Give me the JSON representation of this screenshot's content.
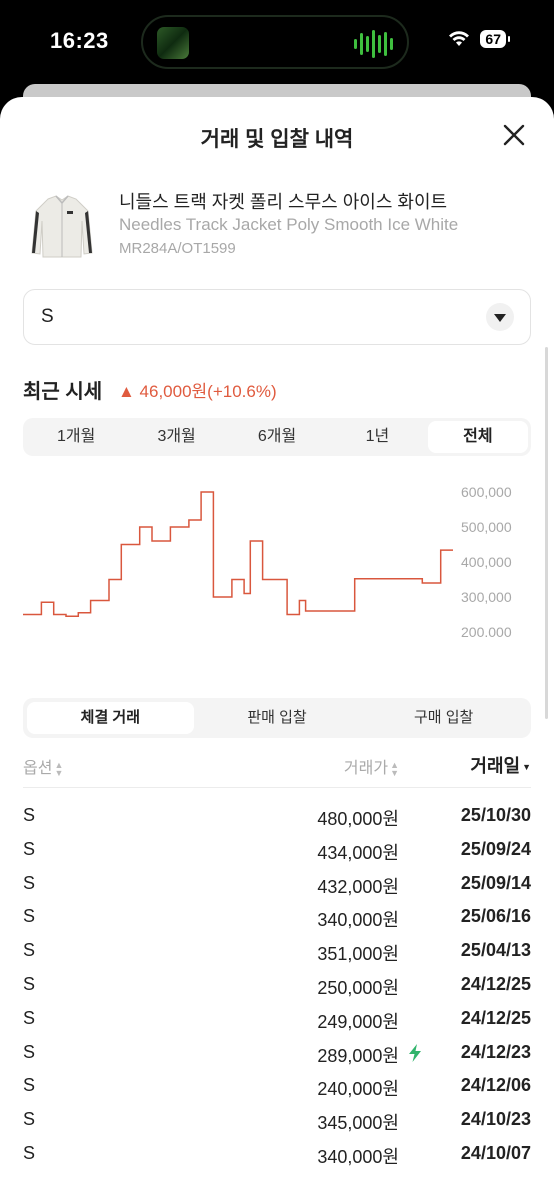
{
  "status_bar": {
    "time": "16:23",
    "battery": "67"
  },
  "sheet": {
    "title": "거래 및 입찰 내역"
  },
  "product": {
    "name_ko": "니들스 트랙 자켓 폴리 스무스 아이스 화이트",
    "name_en": "Needles Track Jacket Poly Smooth Ice White",
    "code": "MR284A/OT1599"
  },
  "size_select": {
    "value": "S"
  },
  "recent": {
    "title": "최근 시세",
    "change": "▲ 46,000원(+10.6%)"
  },
  "periods": [
    "1개월",
    "3개월",
    "6개월",
    "1년",
    "전체"
  ],
  "active_period": "전체",
  "chart_data": {
    "type": "line",
    "y_ticks": [
      "600,000",
      "500,000",
      "400,000",
      "300,000",
      "200,000"
    ],
    "ylim": [
      200000,
      600000
    ],
    "color": "#d9573d",
    "values": [
      250000,
      250000,
      250000,
      285000,
      285000,
      250000,
      250000,
      245000,
      245000,
      255000,
      255000,
      290000,
      290000,
      290000,
      350000,
      350000,
      450000,
      450000,
      450000,
      500000,
      500000,
      460000,
      460000,
      460000,
      500000,
      500000,
      500000,
      520000,
      520000,
      600000,
      600000,
      300000,
      300000,
      300000,
      350000,
      350000,
      310000,
      460000,
      460000,
      350000,
      350000,
      350000,
      350000,
      250000,
      250000,
      290000,
      260000,
      260000,
      260000,
      260000,
      260000,
      260000,
      260000,
      260000,
      352000,
      352000,
      352000,
      352000,
      352000,
      352000,
      352000,
      352000,
      352000,
      352000,
      352000,
      340000,
      340000,
      340000,
      434000,
      434000,
      434000
    ]
  },
  "tabs": [
    "체결 거래",
    "판매 입찰",
    "구매 입찰"
  ],
  "active_tab": "체결 거래",
  "table": {
    "headers": {
      "option": "옵션",
      "price": "거래가",
      "date": "거래일"
    },
    "rows": [
      {
        "option": "S",
        "price": "480,000원",
        "date": "25/10/30",
        "quick": false
      },
      {
        "option": "S",
        "price": "434,000원",
        "date": "25/09/24",
        "quick": false
      },
      {
        "option": "S",
        "price": "432,000원",
        "date": "25/09/14",
        "quick": false
      },
      {
        "option": "S",
        "price": "340,000원",
        "date": "25/06/16",
        "quick": false
      },
      {
        "option": "S",
        "price": "351,000원",
        "date": "25/04/13",
        "quick": false
      },
      {
        "option": "S",
        "price": "250,000원",
        "date": "24/12/25",
        "quick": false
      },
      {
        "option": "S",
        "price": "249,000원",
        "date": "24/12/25",
        "quick": false
      },
      {
        "option": "S",
        "price": "289,000원",
        "date": "24/12/23",
        "quick": true
      },
      {
        "option": "S",
        "price": "240,000원",
        "date": "24/12/06",
        "quick": false
      },
      {
        "option": "S",
        "price": "345,000원",
        "date": "24/10/23",
        "quick": false
      },
      {
        "option": "S",
        "price": "340,000원",
        "date": "24/10/07",
        "quick": false
      }
    ]
  }
}
